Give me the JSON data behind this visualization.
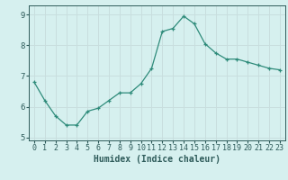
{
  "x": [
    0,
    1,
    2,
    3,
    4,
    5,
    6,
    7,
    8,
    9,
    10,
    11,
    12,
    13,
    14,
    15,
    16,
    17,
    18,
    19,
    20,
    21,
    22,
    23
  ],
  "y": [
    6.8,
    6.2,
    5.7,
    5.4,
    5.4,
    5.85,
    5.95,
    6.2,
    6.45,
    6.45,
    6.75,
    7.25,
    8.45,
    8.55,
    8.95,
    8.7,
    8.05,
    7.75,
    7.55,
    7.55,
    7.45,
    7.35,
    7.25,
    7.2
  ],
  "line_color": "#2e8b7a",
  "marker": "+",
  "marker_size": 3.5,
  "xlabel": "Humidex (Indice chaleur)",
  "bg_color": "#d6f0ef",
  "grid_color": "#c8dede",
  "xlim": [
    -0.5,
    23.5
  ],
  "ylim": [
    4.9,
    9.3
  ],
  "yticks": [
    5,
    6,
    7,
    8,
    9
  ],
  "xticks": [
    0,
    1,
    2,
    3,
    4,
    5,
    6,
    7,
    8,
    9,
    10,
    11,
    12,
    13,
    14,
    15,
    16,
    17,
    18,
    19,
    20,
    21,
    22,
    23
  ],
  "tick_color": "#2e5b5a",
  "xlabel_fontsize": 7,
  "tick_fontsize": 6,
  "linewidth": 0.9,
  "markeredgewidth": 0.9
}
